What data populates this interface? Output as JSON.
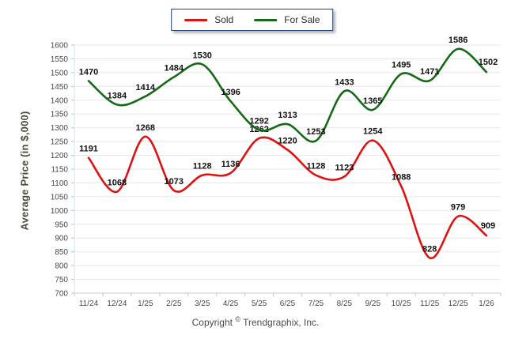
{
  "chart_data": {
    "type": "line",
    "categories": [
      "11/24",
      "12/24",
      "1/25",
      "2/25",
      "3/25",
      "4/25",
      "5/25",
      "6/25",
      "7/25",
      "8/25",
      "9/25",
      "10/25",
      "11/25",
      "12/25",
      "1/26"
    ],
    "series": [
      {
        "name": "Sold",
        "color": "#de1212",
        "values": [
          1191,
          1068,
          1268,
          1073,
          1128,
          1136,
          1262,
          1220,
          1128,
          1123,
          1254,
          1088,
          828,
          979,
          909
        ]
      },
      {
        "name": "For Sale",
        "color": "#156b15",
        "values": [
          1470,
          1384,
          1414,
          1484,
          1530,
          1396,
          1292,
          1313,
          1253,
          1433,
          1365,
          1495,
          1471,
          1586,
          1502
        ]
      }
    ],
    "title": "",
    "xlabel": "",
    "ylabel": "Average Price (in $,000)",
    "ylim": [
      700,
      1600
    ],
    "ytick_step": 50,
    "grid": "horizontal",
    "legend_position": "top-center",
    "line_smoothing": "spline",
    "data_labels": true
  },
  "footer": {
    "prefix": "Copyright",
    "symbol": "©",
    "company": "Trendgraphix, Inc."
  },
  "colors": {
    "gridline": "#e7e7e7",
    "axis_bottom": "#c9c9c9",
    "axis_left": "#dbe6f2",
    "left_tick": "#a3c4e4",
    "tick_label": "#4a4a4a",
    "data_label": "#121212",
    "legend_border": "#1f3f77",
    "y_title": "#494d39"
  }
}
